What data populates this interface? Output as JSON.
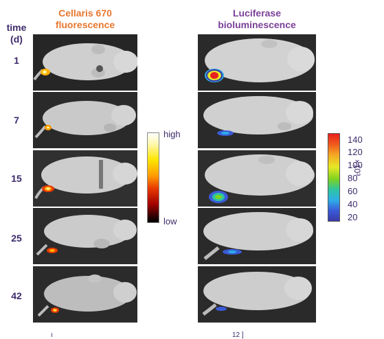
{
  "headers": {
    "fluorescence": [
      "Cellaris 670",
      "fluorescence"
    ],
    "luminescence": [
      "Luciferase",
      "bioluminescence"
    ]
  },
  "time_axis": {
    "label_line1": "time",
    "label_line2": "(d)",
    "values": [
      "1",
      "7",
      "15",
      "25",
      "42"
    ]
  },
  "fluorescence_scale": {
    "high": "high",
    "low": "low"
  },
  "luminescence_scale": {
    "ticks": [
      "140",
      "120",
      "100",
      "80",
      "60",
      "40",
      "20"
    ],
    "unit": "×10³"
  },
  "footer": {
    "left": "ı",
    "right": "12 ]"
  }
}
